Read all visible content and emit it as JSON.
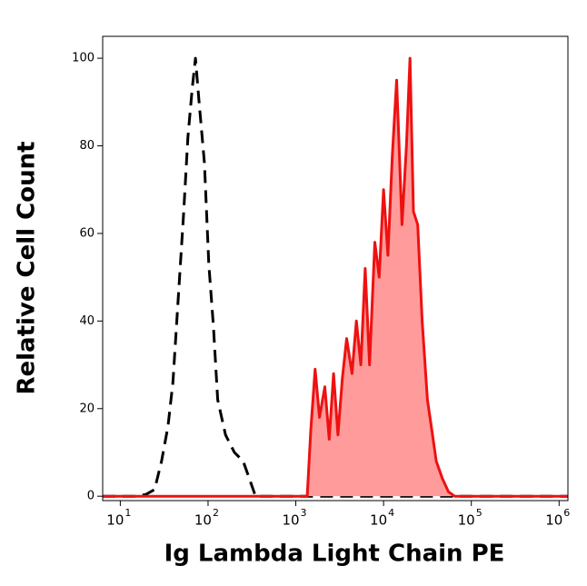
{
  "chart_data": {
    "type": "histogram-overlay",
    "x_label": "Ig Lambda Light Chain PE",
    "y_label": "Relative Cell Count",
    "xlog": true,
    "xlim": [
      6.3,
      1260000
    ],
    "ylim": [
      -1,
      105
    ],
    "xticks": [
      {
        "value": 10,
        "label": "10",
        "sup": "1"
      },
      {
        "value": 100,
        "label": "10",
        "sup": "2"
      },
      {
        "value": 1000,
        "label": "10",
        "sup": "3"
      },
      {
        "value": 10000,
        "label": "10",
        "sup": "4"
      },
      {
        "value": 100000,
        "label": "10",
        "sup": "5"
      },
      {
        "value": 1000000,
        "label": "10",
        "sup": "6"
      }
    ],
    "yticks": [
      0,
      20,
      40,
      60,
      80,
      100
    ],
    "series": [
      {
        "color": "#000000",
        "dashed": true,
        "filled": false,
        "x": [
          6.3,
          15,
          19.5,
          24.6,
          29.5,
          35,
          39.8,
          45.7,
          52.5,
          58.9,
          66,
          71.8,
          79,
          91,
          102,
          115,
          129,
          158,
          200,
          251,
          302,
          347,
          1260000
        ],
        "values": [
          0,
          0,
          0.4,
          1.5,
          8,
          16,
          26,
          45,
          64,
          82,
          93,
          100,
          90,
          76,
          53,
          39,
          22,
          14,
          10,
          8,
          3.5,
          0,
          0
        ]
      },
      {
        "color": "#ee1111",
        "fill": "#ff9b9b",
        "dashed": false,
        "filled": true,
        "x": [
          6.3,
          1350,
          1480,
          1660,
          1860,
          2140,
          2400,
          2690,
          3020,
          3390,
          3800,
          4370,
          4900,
          5500,
          6170,
          6920,
          7940,
          8910,
          10000,
          11200,
          12600,
          14100,
          16200,
          18200,
          20000,
          21900,
          24500,
          27500,
          31600,
          35500,
          39800,
          46800,
          55000,
          64600,
          1260000
        ],
        "values": [
          0,
          0,
          15,
          29,
          18,
          25,
          13,
          28,
          14,
          27,
          36,
          28,
          40,
          30,
          52,
          30,
          58,
          50,
          70,
          55,
          78,
          95,
          62,
          80,
          100,
          65,
          62,
          40,
          22,
          15,
          8,
          4,
          1,
          0,
          0
        ]
      }
    ]
  }
}
